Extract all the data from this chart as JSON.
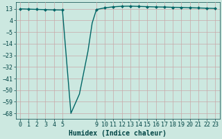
{
  "xlabel": "Humidex (Indice chaleur)",
  "ylabel": "",
  "bg_color": "#cce8e0",
  "grid_color": "#c8a8a8",
  "line_color": "#006666",
  "marker_color": "#006666",
  "x": [
    0,
    1,
    2,
    3,
    4,
    5,
    6,
    7,
    8,
    8.5,
    9,
    10,
    11,
    12,
    13,
    14,
    15,
    16,
    17,
    18,
    19,
    20,
    21,
    22,
    23
  ],
  "y": [
    13.0,
    12.8,
    12.6,
    12.4,
    12.2,
    12.1,
    -68,
    -53,
    -20,
    2,
    12.5,
    13.8,
    14.6,
    15.0,
    15.1,
    14.9,
    14.7,
    14.5,
    14.4,
    14.2,
    14.1,
    13.9,
    13.7,
    13.5,
    13.3
  ],
  "marker_x": [
    0,
    1,
    2,
    3,
    4,
    5,
    9,
    10,
    11,
    12,
    13,
    14,
    15,
    16,
    17,
    18,
    19,
    20,
    21,
    22,
    23
  ],
  "marker_y": [
    13.0,
    12.8,
    12.6,
    12.4,
    12.2,
    12.1,
    12.5,
    13.8,
    14.6,
    15.0,
    15.1,
    14.9,
    14.7,
    14.5,
    14.4,
    14.2,
    14.1,
    13.9,
    13.7,
    13.5,
    13.3
  ],
  "xlim": [
    -0.5,
    23.5
  ],
  "ylim": [
    -72,
    18
  ],
  "yticks": [
    13,
    4,
    -5,
    -14,
    -23,
    -32,
    -41,
    -50,
    -59,
    -68
  ],
  "xticks": [
    0,
    1,
    2,
    3,
    4,
    5,
    9,
    10,
    11,
    12,
    13,
    14,
    15,
    16,
    17,
    18,
    19,
    20,
    21,
    22,
    23
  ],
  "font_color": "#004444",
  "font_family": "monospace",
  "linewidth": 1.0,
  "markersize": 2.5,
  "tick_labelsize": 6,
  "xlabel_fontsize": 7
}
